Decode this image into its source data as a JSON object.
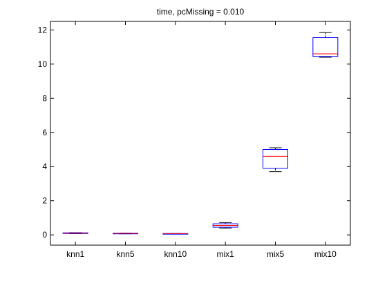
{
  "chart_data": {
    "type": "box",
    "title": "time, pcMissing = 0.010",
    "xlabel": "",
    "ylabel": "",
    "categories": [
      "knn1",
      "knn5",
      "knn10",
      "mix1",
      "mix5",
      "mix10"
    ],
    "ylim": [
      -0.6,
      12.5
    ],
    "yticks": [
      0,
      2,
      4,
      6,
      8,
      10,
      12
    ],
    "grid": false,
    "box_color": "#0000ff",
    "median_color": "#ff0000",
    "whisker_color": "#000000",
    "boxes": [
      {
        "name": "knn1",
        "min": 0.07,
        "q1": 0.08,
        "median": 0.1,
        "q3": 0.12,
        "max": 0.13
      },
      {
        "name": "knn5",
        "min": 0.06,
        "q1": 0.07,
        "median": 0.08,
        "q3": 0.1,
        "max": 0.11
      },
      {
        "name": "knn10",
        "min": 0.06,
        "q1": 0.06,
        "median": 0.07,
        "q3": 0.08,
        "max": 0.08
      },
      {
        "name": "mix1",
        "min": 0.4,
        "q1": 0.45,
        "median": 0.55,
        "q3": 0.65,
        "max": 0.72
      },
      {
        "name": "mix5",
        "min": 3.7,
        "q1": 3.9,
        "median": 4.6,
        "q3": 5.0,
        "max": 5.1
      },
      {
        "name": "mix10",
        "min": 10.4,
        "q1": 10.45,
        "median": 10.6,
        "q3": 11.55,
        "max": 11.85
      }
    ]
  }
}
